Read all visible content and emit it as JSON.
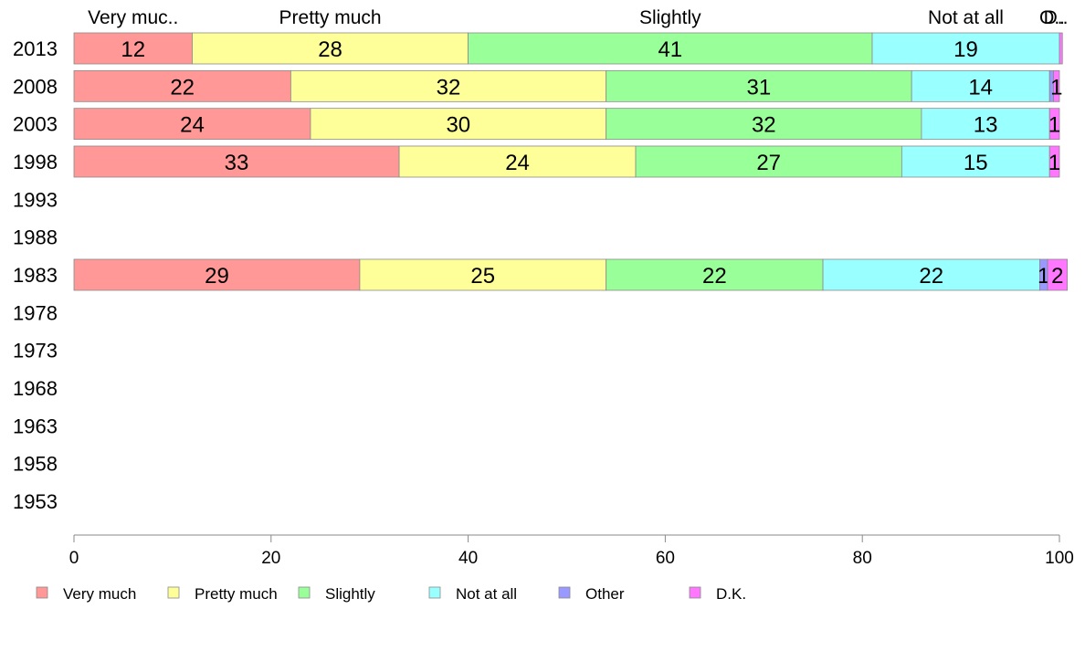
{
  "chart_data": {
    "type": "bar",
    "orientation": "horizontal",
    "stacked": true,
    "categories": [
      "2013",
      "2008",
      "2003",
      "1998",
      "1993",
      "1988",
      "1983",
      "1978",
      "1973",
      "1968",
      "1963",
      "1958",
      "1953"
    ],
    "series": [
      {
        "name": "Very much",
        "color": "#ff9896",
        "values": [
          12,
          22,
          24,
          33,
          null,
          null,
          29,
          null,
          null,
          null,
          null,
          null,
          null
        ]
      },
      {
        "name": "Pretty much",
        "color": "#ffff99",
        "values": [
          28,
          32,
          30,
          24,
          null,
          null,
          25,
          null,
          null,
          null,
          null,
          null,
          null
        ]
      },
      {
        "name": "Slightly",
        "color": "#99ff99",
        "values": [
          41,
          31,
          32,
          27,
          null,
          null,
          22,
          null,
          null,
          null,
          null,
          null,
          null
        ]
      },
      {
        "name": "Not at all",
        "color": "#99ffff",
        "values": [
          19,
          14,
          13,
          15,
          null,
          null,
          22,
          null,
          null,
          null,
          null,
          null,
          null
        ]
      },
      {
        "name": "Other",
        "color": "#9999ff",
        "values": [
          0,
          0.4,
          0,
          0,
          null,
          null,
          0.8,
          null,
          null,
          null,
          null,
          null,
          null
        ]
      },
      {
        "name": "D.K.",
        "color": "#ff77ff",
        "values": [
          0.3,
          0.6,
          1,
          1,
          null,
          null,
          2,
          null,
          null,
          null,
          null,
          null,
          null
        ]
      }
    ],
    "data_labels": [
      [
        "12",
        "28",
        "41",
        "19",
        "",
        ""
      ],
      [
        "22",
        "32",
        "31",
        "14",
        "",
        "1"
      ],
      [
        "24",
        "30",
        "32",
        "13",
        "",
        "1"
      ],
      [
        "33",
        "24",
        "27",
        "15",
        "",
        "1"
      ],
      [],
      [],
      [
        "29",
        "25",
        "22",
        "22",
        "1",
        "2"
      ],
      [],
      [],
      [],
      [],
      [],
      []
    ],
    "top_labels": [
      "Very muc..",
      "Pretty much",
      "Slightly",
      "Not at all",
      "O..",
      "D.."
    ],
    "x_ticks": [
      0,
      20,
      40,
      60,
      80,
      100
    ],
    "xlim": [
      0,
      100
    ],
    "xlabel": "",
    "ylabel": "",
    "title": "",
    "grid": false,
    "legend_position": "bottom"
  }
}
